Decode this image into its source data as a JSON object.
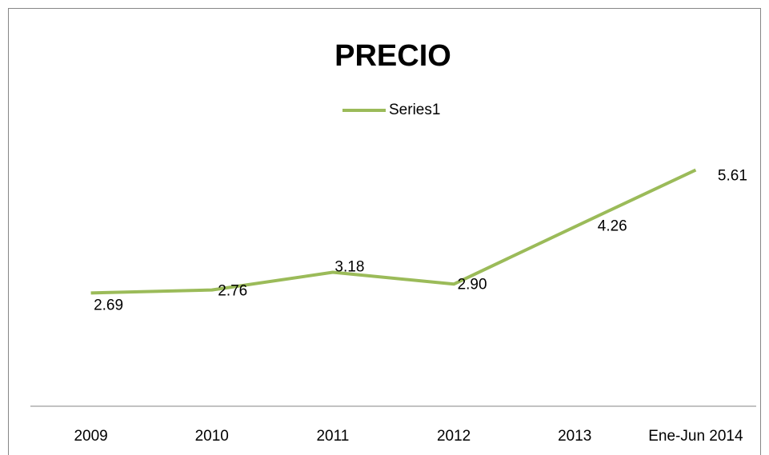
{
  "chart_data": {
    "type": "line",
    "title": "PRECIO",
    "categories": [
      "2009",
      "2010",
      "2011",
      "2012",
      "2013",
      "Ene-Jun 2014"
    ],
    "series": [
      {
        "name": "Series1",
        "color": "#9bbb59",
        "values": [
          2.69,
          2.76,
          3.18,
          2.9,
          4.26,
          5.61
        ],
        "value_labels": [
          "2.69",
          "2.76",
          "3.18",
          "2.90",
          "4.26",
          "5.61"
        ]
      }
    ],
    "ylim": [
      0,
      6
    ],
    "legend": "top"
  }
}
